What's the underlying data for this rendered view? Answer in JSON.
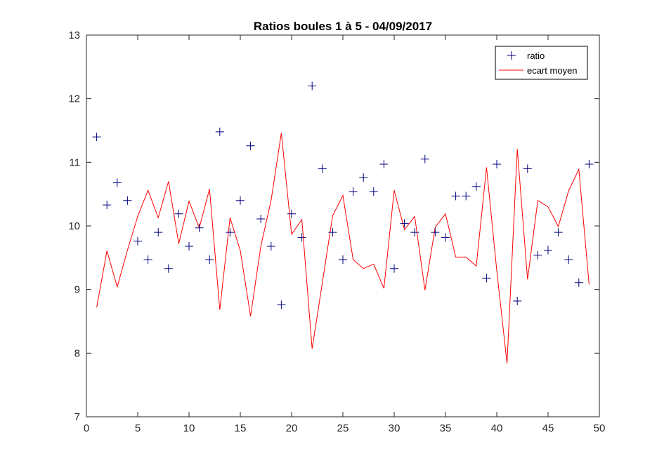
{
  "chart_data": {
    "type": "line",
    "title": "Ratios boules 1 à 5 - 04/09/2017",
    "xlabel": "",
    "ylabel": "",
    "xlim": [
      0,
      50
    ],
    "ylim": [
      7,
      13
    ],
    "xticks": [
      0,
      5,
      10,
      15,
      20,
      25,
      30,
      35,
      40,
      45,
      50
    ],
    "yticks": [
      7,
      8,
      9,
      10,
      11,
      12,
      13
    ],
    "grid": false,
    "legend_position": "top-right",
    "series": [
      {
        "name": "ratio",
        "style": "markers",
        "marker": "plus",
        "color": "#000080",
        "x": [
          1,
          2,
          3,
          4,
          5,
          6,
          7,
          8,
          9,
          10,
          11,
          12,
          13,
          14,
          15,
          16,
          17,
          18,
          19,
          20,
          21,
          22,
          23,
          24,
          25,
          26,
          27,
          28,
          29,
          30,
          31,
          32,
          33,
          34,
          35,
          36,
          37,
          38,
          39,
          40,
          42,
          43,
          44,
          45,
          46,
          47,
          48,
          49
        ],
        "y": [
          11.4,
          10.33,
          10.68,
          10.4,
          9.76,
          9.47,
          9.9,
          9.33,
          10.19,
          9.68,
          9.97,
          9.47,
          11.48,
          9.9,
          10.4,
          11.26,
          10.11,
          9.68,
          8.76,
          10.19,
          9.82,
          12.2,
          10.9,
          9.9,
          9.47,
          10.54,
          10.76,
          10.54,
          10.97,
          9.33,
          10.04,
          9.9,
          11.05,
          9.9,
          9.82,
          10.47,
          10.47,
          10.62,
          9.18,
          10.97,
          8.82,
          10.9,
          9.54,
          9.62,
          9.9,
          9.47,
          9.11,
          10.97
        ]
      },
      {
        "name": "ecart moyen",
        "style": "line",
        "color": "#ff0000",
        "x": [
          1,
          2,
          3,
          4,
          5,
          6,
          7,
          8,
          9,
          10,
          11,
          12,
          13,
          14,
          15,
          16,
          17,
          18,
          19,
          20,
          21,
          22,
          23,
          24,
          25,
          26,
          27,
          28,
          29,
          30,
          31,
          32,
          33,
          34,
          35,
          36,
          37,
          38,
          39,
          40,
          41,
          42,
          43,
          44,
          45,
          46,
          47,
          48,
          49
        ],
        "y": [
          8.72,
          9.61,
          9.04,
          9.62,
          10.15,
          10.56,
          10.13,
          10.7,
          9.72,
          10.39,
          9.97,
          10.58,
          8.68,
          10.13,
          9.61,
          8.58,
          9.68,
          10.4,
          11.46,
          9.87,
          10.1,
          8.07,
          9.11,
          10.16,
          10.48,
          9.47,
          9.33,
          9.4,
          9.02,
          10.56,
          9.94,
          10.15,
          8.99,
          9.98,
          10.19,
          9.51,
          9.51,
          9.37,
          10.92,
          9.3,
          7.84,
          11.21,
          9.16,
          10.4,
          10.3,
          9.99,
          10.55,
          10.89,
          9.08
        ]
      }
    ]
  }
}
